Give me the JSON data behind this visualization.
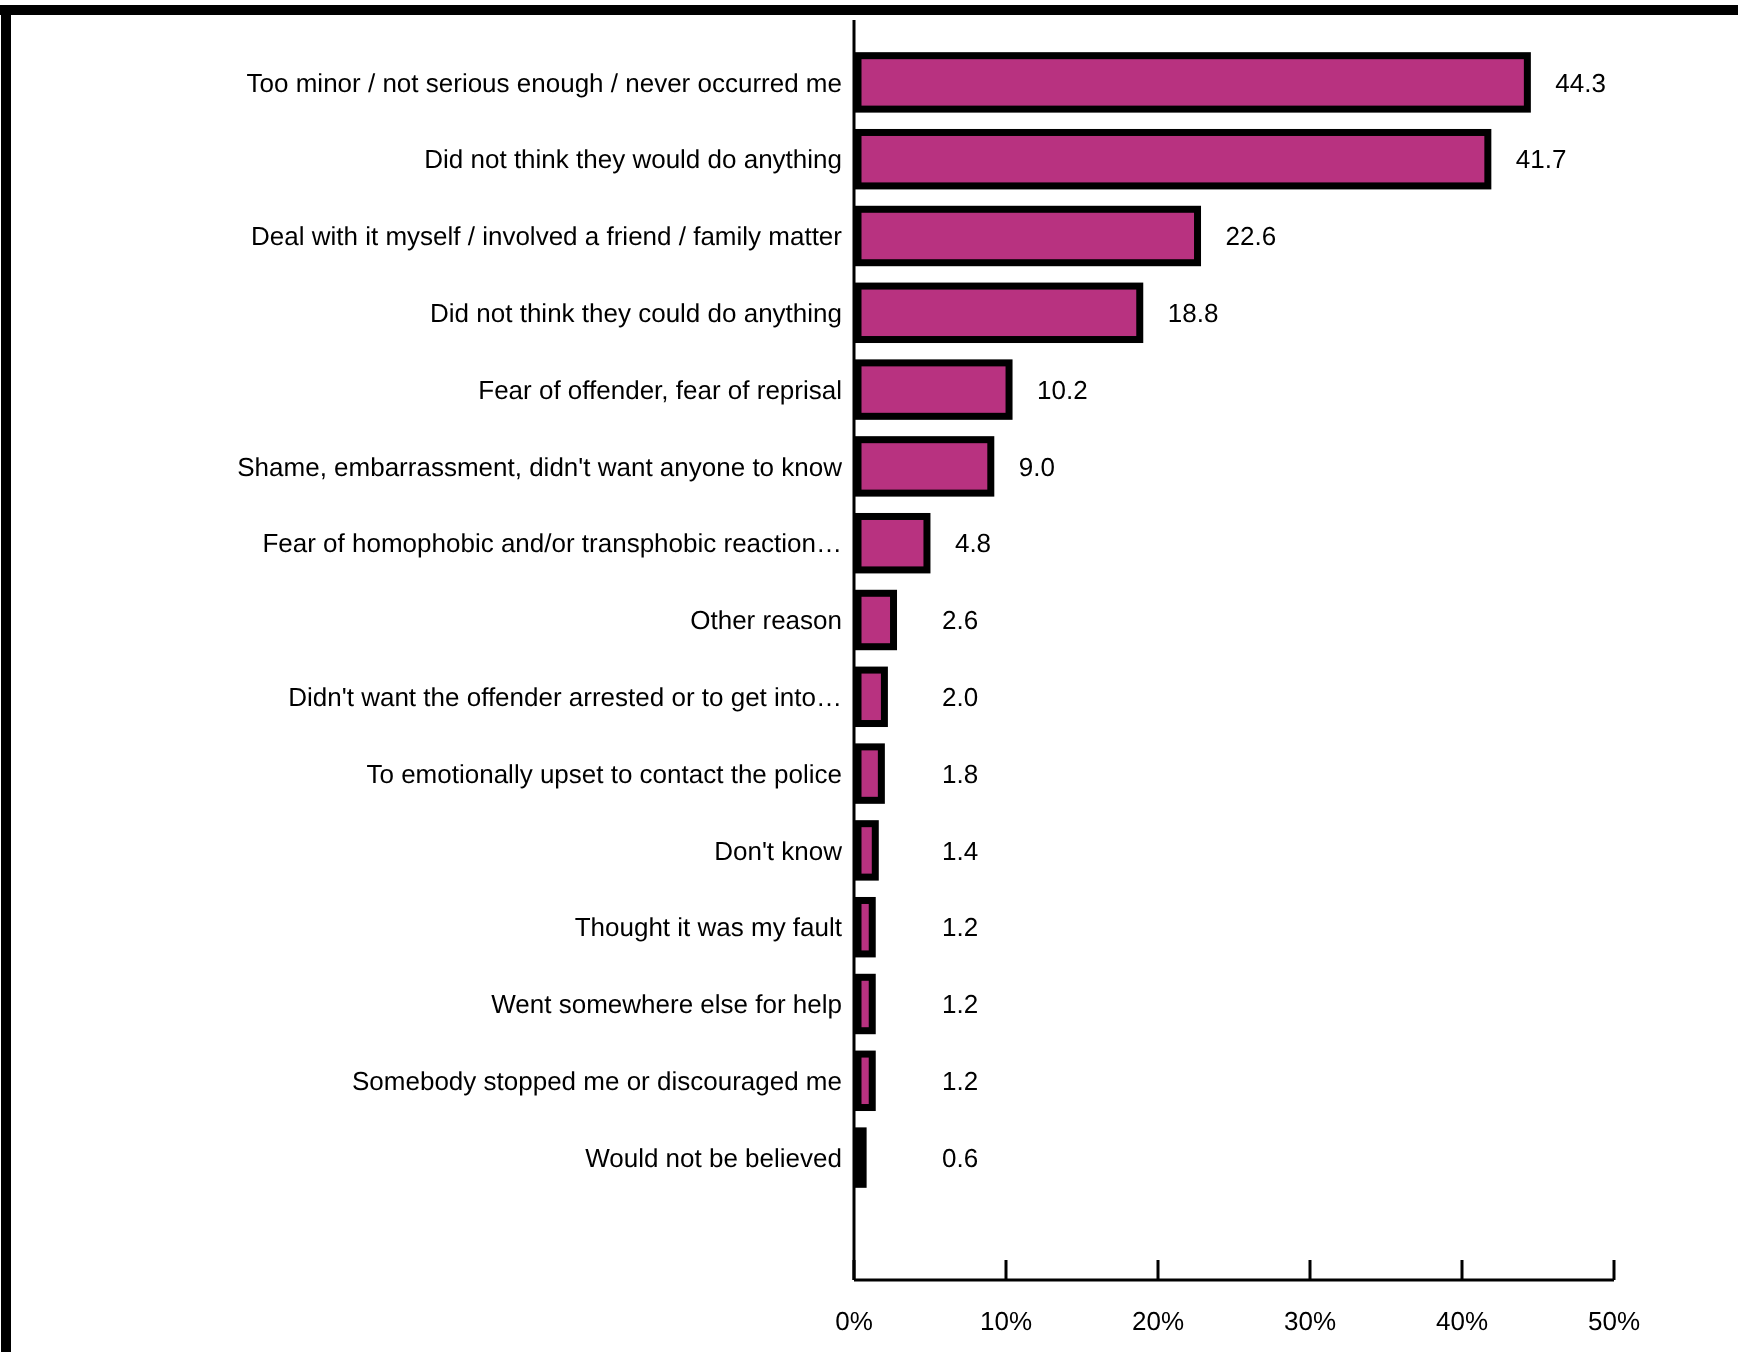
{
  "chart_data": {
    "type": "bar",
    "orientation": "horizontal",
    "categories": [
      "Too minor / not serious enough / never occurred me",
      "Did not think they would do anything",
      "Deal with it myself / involved a friend / family matter",
      "Did not think they could do anything",
      "Fear of offender, fear of reprisal",
      "Shame, embarrassment, didn't want anyone to know",
      "Fear of homophobic and/or transphobic reaction…",
      "Other reason",
      "Didn't want the offender arrested or to get into…",
      "To emotionally upset to contact the police",
      "Don't know",
      "Thought it was my fault",
      "Went somewhere else for help",
      "Somebody stopped me or discouraged me",
      "Would not be believed"
    ],
    "values": [
      44.3,
      41.7,
      22.6,
      18.8,
      10.2,
      9.0,
      4.8,
      2.6,
      2.0,
      1.8,
      1.4,
      1.2,
      1.2,
      1.2,
      0.6
    ],
    "value_labels": [
      "44.3",
      "41.7",
      "22.6",
      "18.8",
      "10.2",
      "9.0",
      "4.8",
      "2.6",
      "2.0",
      "1.8",
      "1.4",
      "1.2",
      "1.2",
      "1.2",
      "0.6"
    ],
    "color": "#b83280",
    "xlim": [
      0,
      50
    ],
    "xticks": [
      {
        "value": 0,
        "label": "0%"
      },
      {
        "value": 10,
        "label": "10%"
      },
      {
        "value": 20,
        "label": "20%"
      },
      {
        "value": 30,
        "label": "30%"
      },
      {
        "value": 40,
        "label": "40%"
      },
      {
        "value": 50,
        "label": "50%"
      }
    ],
    "grid": false
  }
}
